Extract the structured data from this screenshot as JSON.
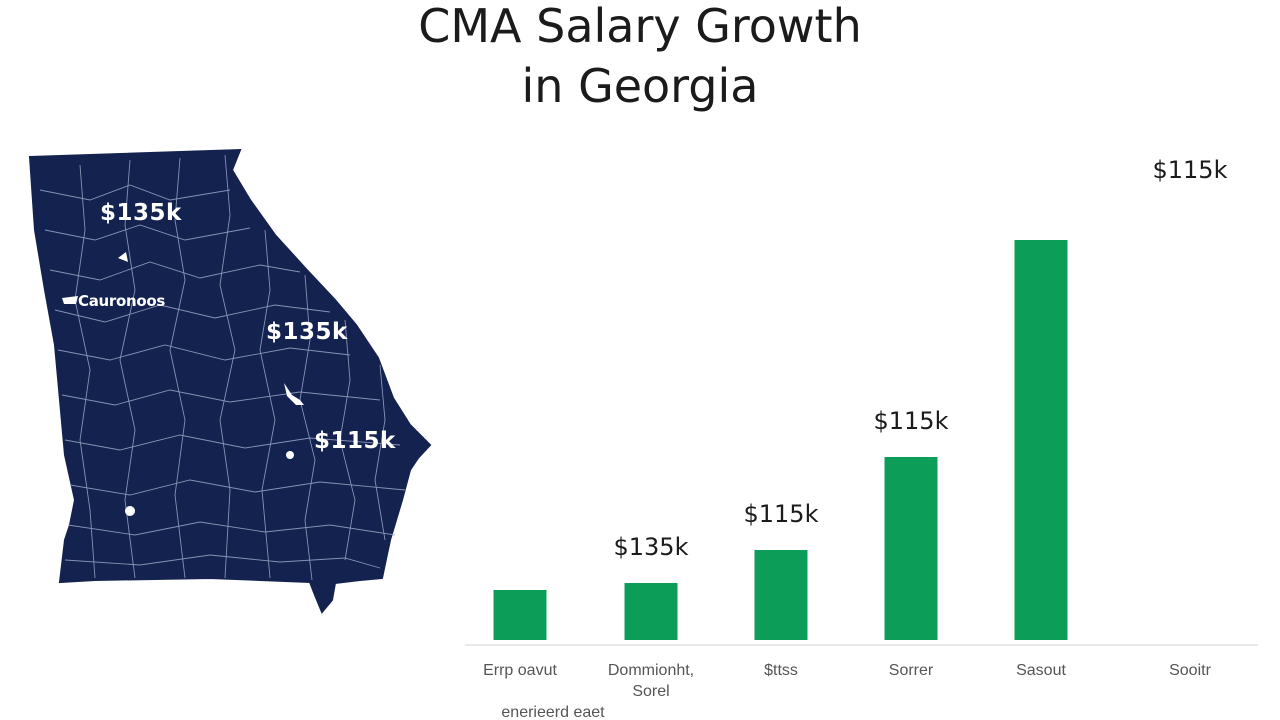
{
  "title": {
    "line1": "CMA Salary Growth",
    "line2": "in Georgia"
  },
  "map": {
    "fill_color": "#14224f",
    "labels": [
      "$135k",
      "$135k",
      "$115k"
    ],
    "city_label": "Cauronoos"
  },
  "chart_data": {
    "type": "bar",
    "title": "",
    "xlabel": "",
    "ylabel": "",
    "categories": [
      [
        "Errp oavut",
        "enerieerd eaet"
      ],
      [
        "Dommionht,",
        "Sorel"
      ],
      [
        "$ttss"
      ],
      [
        "Sorrer"
      ],
      [
        "Sasout"
      ],
      [
        "Sooitr"
      ]
    ],
    "values": [
      50,
      57,
      90,
      183,
      400,
      null
    ],
    "value_labels": [
      "",
      "$135k",
      "$115k",
      "$115k",
      "",
      "$115k"
    ],
    "ylim": [
      0,
      480
    ],
    "bar_color": "#0c9d58",
    "grid": false,
    "legend": "none"
  }
}
